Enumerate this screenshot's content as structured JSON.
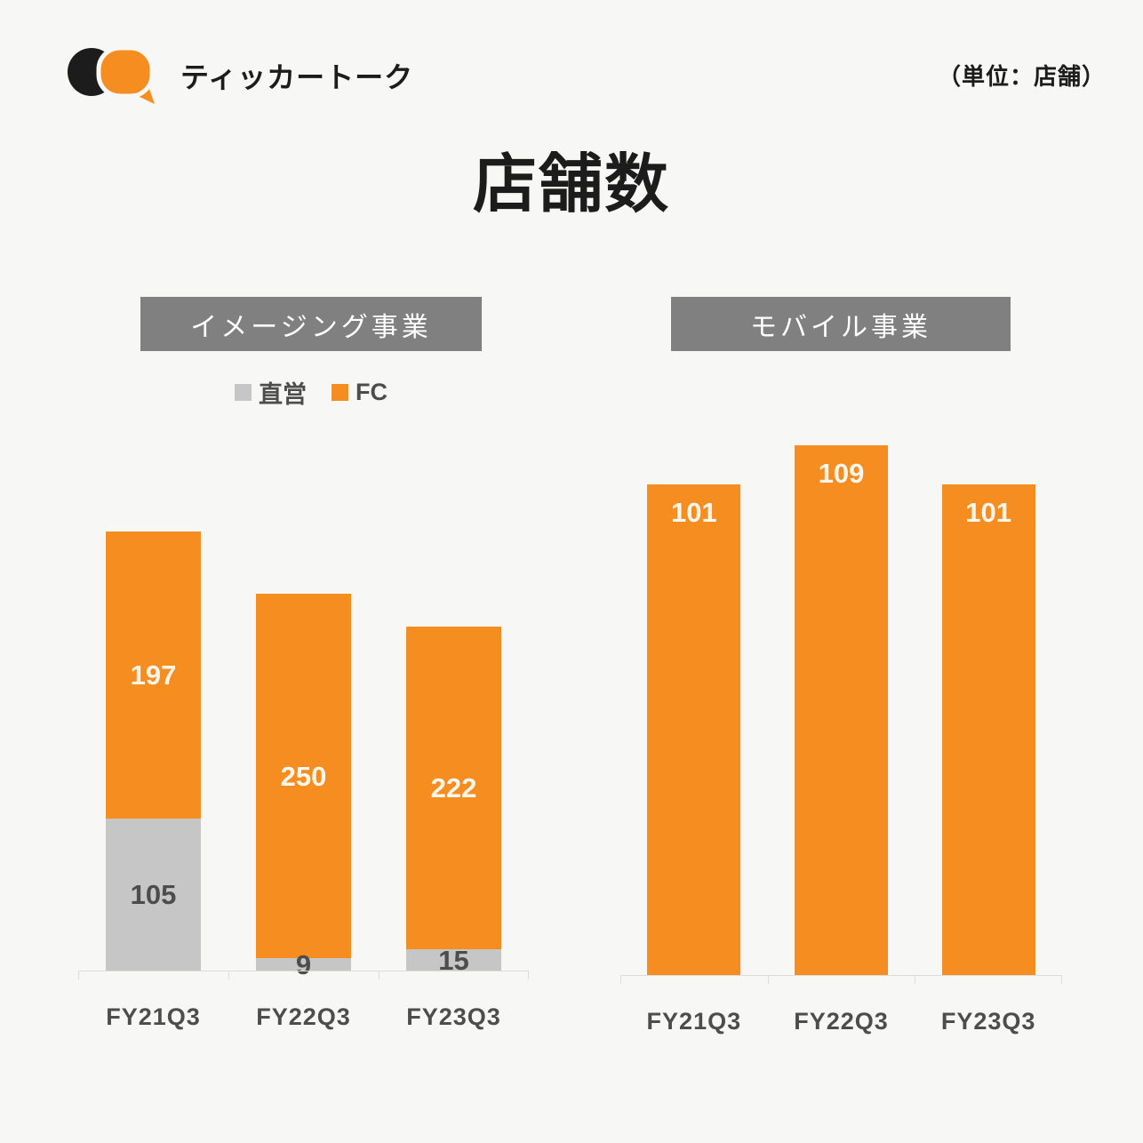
{
  "page": {
    "title": "店舗数",
    "unit_note": "（単位：店舗）",
    "background": "#F7F7F5"
  },
  "brand": {
    "name": "ティッカートーク",
    "logo_colors": {
      "black_bubble": "#1C1C1C",
      "orange_bubble": "#F68D20"
    }
  },
  "colors": {
    "orange": "#F68D20",
    "gray": "#C6C6C6",
    "header_band": "#808080",
    "dark_text": "#4D4D4D",
    "axis": "#DCDCDC"
  },
  "legend": {
    "items": [
      {
        "label": "直営",
        "color": "#C6C6C6"
      },
      {
        "label": "FC",
        "color": "#F68D20"
      }
    ]
  },
  "chart_data": [
    {
      "type": "bar",
      "stacked": true,
      "title": "イメージング事業",
      "categories": [
        "FY21Q3",
        "FY22Q3",
        "FY23Q3"
      ],
      "series": [
        {
          "name": "直営",
          "color": "#C6C6C6",
          "label_color": "#4D4D4D",
          "values": [
            105,
            9,
            15
          ]
        },
        {
          "name": "FC",
          "color": "#F68D20",
          "label_color": "#FCF7EE",
          "values": [
            197,
            250,
            222
          ]
        }
      ],
      "totals": [
        302,
        259,
        237
      ],
      "value_label_position": "inside-center",
      "legend_position": "top",
      "gridlines": false,
      "baseline": true
    },
    {
      "type": "bar",
      "stacked": false,
      "title": "モバイル事業",
      "categories": [
        "FY21Q3",
        "FY22Q3",
        "FY23Q3"
      ],
      "series": [
        {
          "name": "FC",
          "color": "#F68D20",
          "label_color": "#FCF7EE",
          "values": [
            101,
            109,
            101
          ]
        }
      ],
      "totals": [
        101,
        109,
        101
      ],
      "value_label_position": "inside-top",
      "legend_position": "none",
      "gridlines": false,
      "baseline": true
    }
  ]
}
